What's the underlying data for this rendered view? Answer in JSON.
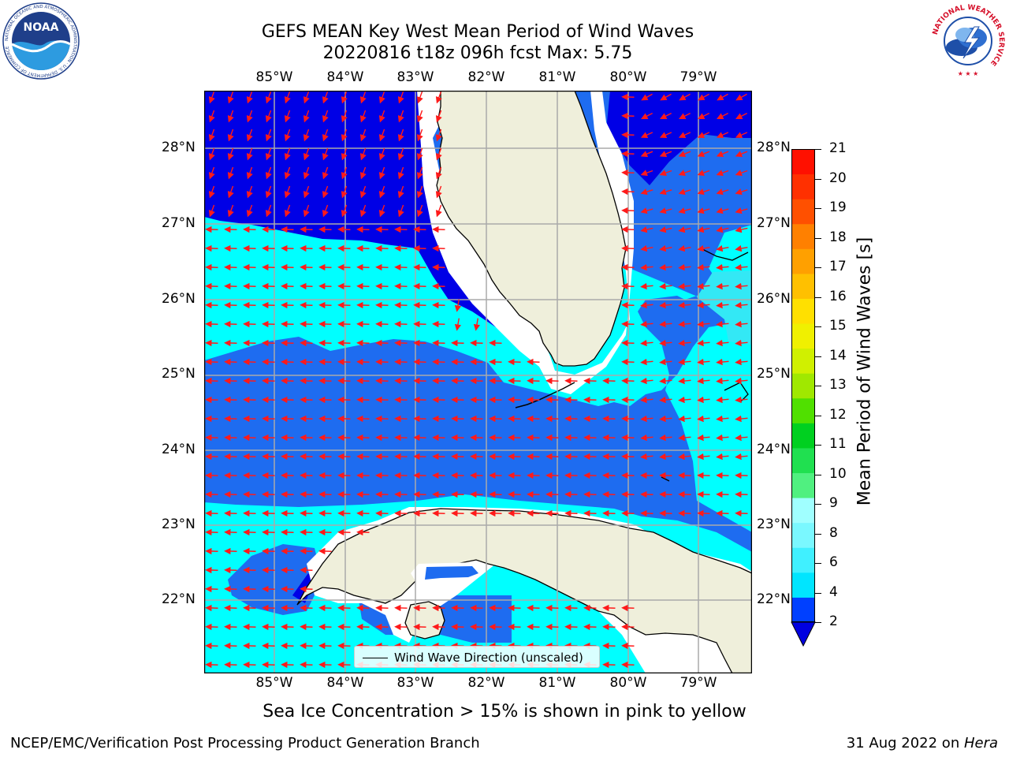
{
  "title_line1": "GEFS MEAN Key West Mean Period of Wind Waves",
  "title_line2": "20220816 t18z 096h fcst   Max: 5.75",
  "lon_labels": [
    "85°W",
    "84°W",
    "83°W",
    "82°W",
    "81°W",
    "80°W",
    "79°W"
  ],
  "lat_labels": [
    "28°N",
    "27°N",
    "26°N",
    "25°N",
    "24°N",
    "23°N",
    "22°N"
  ],
  "colorbar": {
    "label": "Mean Period of Wind Waves [s]",
    "ticks": [
      "2",
      "4",
      "6",
      "8",
      "9",
      "10",
      "11",
      "12",
      "13",
      "14",
      "15",
      "16",
      "17",
      "18",
      "19",
      "20",
      "21"
    ],
    "colors": [
      "#0040ff",
      "#00e5ff",
      "#40f0ff",
      "#7af8ff",
      "#a0ffff",
      "#50f080",
      "#20e050",
      "#00d020",
      "#50e000",
      "#a0e800",
      "#d0f000",
      "#f0f000",
      "#ffe000",
      "#ffc000",
      "#ffa000",
      "#ff8000",
      "#ff5000",
      "#ff3000",
      "#ff1000"
    ],
    "extend_color": "#0000e0"
  },
  "field_colors": {
    "dark_blue": "#0000e6",
    "mid_blue": "#1e6cf0",
    "cyan": "#00ffff",
    "light_cyan": "#33e8f5",
    "land": "#efefdb",
    "arrow": "#ff1a1a"
  },
  "legend_label": "Wind Wave Direction (unscaled)",
  "ice_caption": "Sea Ice Concentration > 15% is shown in pink to yellow",
  "footer_left": "NCEP/EMC/Verification Post Processing Product Generation Branch",
  "footer_date": "31 Aug 2022 on ",
  "footer_machine": "Hera",
  "logo_noaa_text": "NOAA",
  "logo_noaa_ring": "NATIONAL OCEANIC AND ATMOSPHERIC ADMINISTRATION · U.S. DEPARTMENT OF COMMERCE",
  "logo_nws_ring": "NATIONAL WEATHER SERVICE"
}
